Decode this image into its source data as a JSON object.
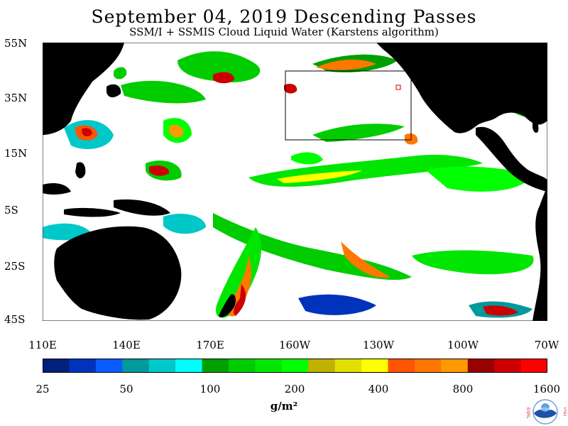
{
  "header": {
    "title": "September 04, 2019  Descending Passes",
    "subtitle": "SSM/I + SSMIS Cloud Liquid Water (Karstens algorithm)"
  },
  "map": {
    "lat_labels": [
      "55N",
      "35N",
      "15N",
      "5S",
      "25S",
      "45S"
    ],
    "lon_labels": [
      "110E",
      "140E",
      "170E",
      "160W",
      "130W",
      "100W",
      "70W"
    ],
    "land_color": "#000000",
    "no_data_color": "#ffffff",
    "box_color": "#000000"
  },
  "colorbar": {
    "labels": [
      "25",
      "50",
      "100",
      "200",
      "400",
      "800",
      "1600"
    ],
    "unit": "g/m²",
    "colors": [
      "#00207a",
      "#0033bb",
      "#0a5cff",
      "#00999c",
      "#00c8c8",
      "#00ffff",
      "#00a000",
      "#00cc00",
      "#00e600",
      "#00ff00",
      "#c0b000",
      "#e0e000",
      "#ffff00",
      "#ff5500",
      "#ff7700",
      "#ff9900",
      "#990000",
      "#cc0000",
      "#ff0000"
    ]
  },
  "logo": {
    "left_letters": "ESRL",
    "right_letters": "PSD",
    "center": "NOAA"
  }
}
